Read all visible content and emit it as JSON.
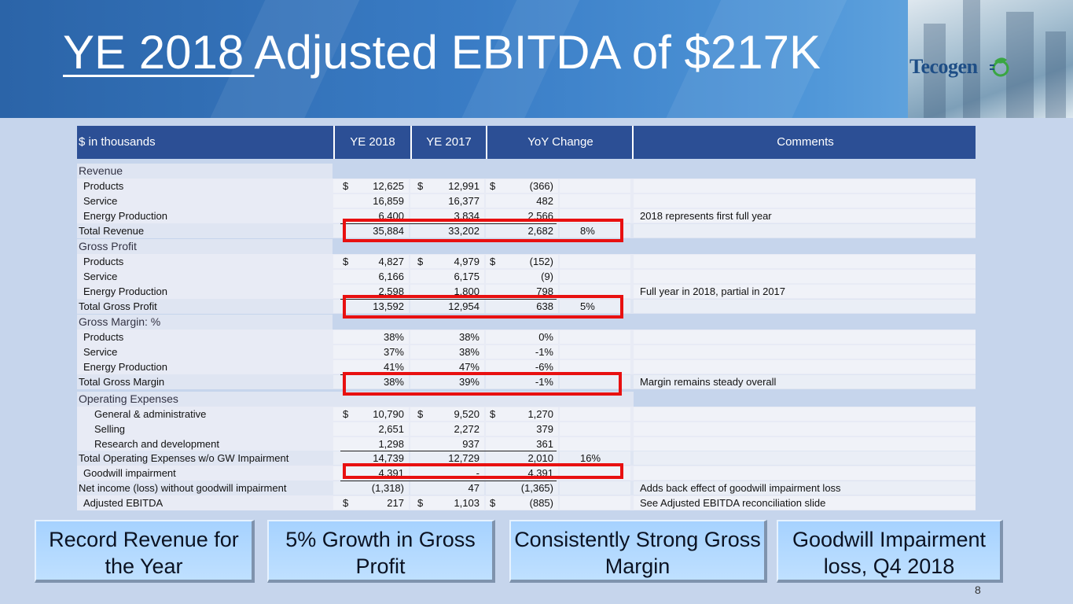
{
  "title": {
    "year": "YE 2018 ",
    "rest": "Adjusted EBITDA of $217K"
  },
  "logo": {
    "text": "Tecogen"
  },
  "table": {
    "headers": [
      "$ in thousands",
      "YE 2018",
      "YE 2017",
      "YoY Change",
      "Comments"
    ],
    "sections": {
      "revenue": "Revenue",
      "gross_profit": "Gross Profit",
      "gross_margin": "Gross Margin: %",
      "opex": "Operating Expenses"
    },
    "rows": [
      {
        "label": "Products",
        "cur1": "$",
        "v2018": "12,625",
        "cur2": "$",
        "v2017": "12,991",
        "cur3": "$",
        "yoy": "(366)",
        "pct": "",
        "comment": ""
      },
      {
        "label": "Service",
        "cur1": "",
        "v2018": "16,859",
        "cur2": "",
        "v2017": "16,377",
        "cur3": "",
        "yoy": "482",
        "pct": "",
        "comment": ""
      },
      {
        "label": "Energy Production",
        "cur1": "",
        "v2018": "6,400",
        "cur2": "",
        "v2017": "3,834",
        "cur3": "",
        "yoy": "2,566",
        "pct": "",
        "comment": "2018 represents first full year"
      },
      {
        "label": "Total Revenue",
        "cur1": "",
        "v2018": "35,884",
        "cur2": "",
        "v2017": "33,202",
        "cur3": "",
        "yoy": "2,682",
        "pct": "8%",
        "comment": ""
      },
      {
        "label": "Products",
        "cur1": "$",
        "v2018": "4,827",
        "cur2": "$",
        "v2017": "4,979",
        "cur3": "$",
        "yoy": "(152)",
        "pct": "",
        "comment": ""
      },
      {
        "label": "Service",
        "cur1": "",
        "v2018": "6,166",
        "cur2": "",
        "v2017": "6,175",
        "cur3": "",
        "yoy": "(9)",
        "pct": "",
        "comment": ""
      },
      {
        "label": "Energy Production",
        "cur1": "",
        "v2018": "2,598",
        "cur2": "",
        "v2017": "1,800",
        "cur3": "",
        "yoy": "798",
        "pct": "",
        "comment": "Full year in 2018, partial in 2017"
      },
      {
        "label": "Total Gross Profit",
        "cur1": "",
        "v2018": "13,592",
        "cur2": "",
        "v2017": "12,954",
        "cur3": "",
        "yoy": "638",
        "pct": "5%",
        "comment": ""
      },
      {
        "label": "Products",
        "cur1": "",
        "v2018": "38%",
        "cur2": "",
        "v2017": "38%",
        "cur3": "",
        "yoy": "0%",
        "pct": "",
        "comment": ""
      },
      {
        "label": "Service",
        "cur1": "",
        "v2018": "37%",
        "cur2": "",
        "v2017": "38%",
        "cur3": "",
        "yoy": "-1%",
        "pct": "",
        "comment": ""
      },
      {
        "label": "Energy Production",
        "cur1": "",
        "v2018": "41%",
        "cur2": "",
        "v2017": "47%",
        "cur3": "",
        "yoy": "-6%",
        "pct": "",
        "comment": ""
      },
      {
        "label": "Total Gross Margin",
        "cur1": "",
        "v2018": "38%",
        "cur2": "",
        "v2017": "39%",
        "cur3": "",
        "yoy": "-1%",
        "pct": "",
        "comment": "Margin remains steady overall"
      },
      {
        "label": "General & administrative",
        "cur1": "$",
        "v2018": "10,790",
        "cur2": "$",
        "v2017": "9,520",
        "cur3": "$",
        "yoy": "1,270",
        "pct": "",
        "comment": ""
      },
      {
        "label": "Selling",
        "cur1": "",
        "v2018": "2,651",
        "cur2": "",
        "v2017": "2,272",
        "cur3": "",
        "yoy": "379",
        "pct": "",
        "comment": ""
      },
      {
        "label": "Research and development",
        "cur1": "",
        "v2018": "1,298",
        "cur2": "",
        "v2017": "937",
        "cur3": "",
        "yoy": "361",
        "pct": "",
        "comment": ""
      },
      {
        "label": "Total Operating Expenses w/o GW Impairment",
        "cur1": "",
        "v2018": "14,739",
        "cur2": "",
        "v2017": "12,729",
        "cur3": "",
        "yoy": "2,010",
        "pct": "16%",
        "comment": ""
      },
      {
        "label": "Goodwill impairment",
        "cur1": "",
        "v2018": "4,391",
        "cur2": "",
        "v2017": "-",
        "cur3": "",
        "yoy": "4,391",
        "pct": "",
        "comment": ""
      },
      {
        "label": "Net income (loss) without goodwill impairment",
        "cur1": "",
        "v2018": "(1,318)",
        "cur2": "",
        "v2017": "47",
        "cur3": "",
        "yoy": "(1,365)",
        "pct": "",
        "comment": "Adds back effect of goodwill impairment loss"
      },
      {
        "label": "Adjusted EBITDA",
        "cur1": "$",
        "v2018": "217",
        "cur2": "$",
        "v2017": "1,103",
        "cur3": "$",
        "yoy": "(885)",
        "pct": "",
        "comment": "See Adjusted EBITDA  reconciliation slide"
      }
    ]
  },
  "callouts": [
    "Record Revenue for the Year",
    "5% Growth in Gross Profit",
    "Consistently Strong Gross Margin",
    "Goodwill Impairment loss, Q4 2018"
  ],
  "page_number": "8"
}
